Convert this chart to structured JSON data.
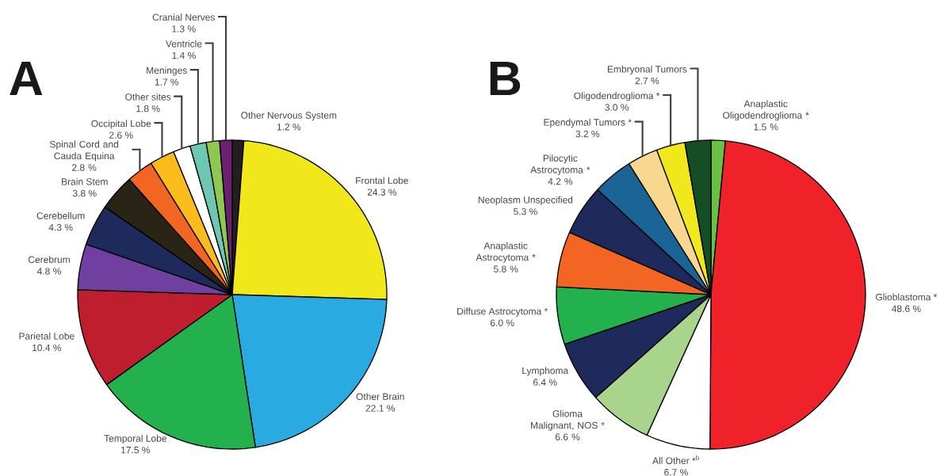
{
  "chart_data": [
    {
      "type": "pie",
      "title": "A",
      "categories": [
        "Other Nervous System",
        "Frontal Lobe",
        "Other Brain",
        "Temporal Lobe",
        "Parietal Lobe",
        "Cerebrum",
        "Cerebellum",
        "Brain Stem",
        "Spinal Cord and Cauda Equina",
        "Occipital Lobe",
        "Other sites",
        "Meninges",
        "Ventricle",
        "Cranial Nerves"
      ],
      "values": [
        1.2,
        24.3,
        22.1,
        17.5,
        10.4,
        4.8,
        4.3,
        3.8,
        2.8,
        2.6,
        1.8,
        1.7,
        1.4,
        1.3
      ],
      "value_labels": [
        "1.2 %",
        "24.3 %",
        "22.1 %",
        "17.5 %",
        "10.4 %",
        "4.8 %",
        "4.3 %",
        "3.8 %",
        "2.8 %",
        "2.6 %",
        "1.8 %",
        "1.7 %",
        "1.4 %",
        "1.3 %"
      ],
      "colors": [
        "#231f20",
        "#f0e81a",
        "#29abe2",
        "#22b14c",
        "#be1e2d",
        "#7040a0",
        "#1f2a5c",
        "#2a2416",
        "#f26522",
        "#fbbc1b",
        "#ffffff",
        "#6cc8b0",
        "#8dc850",
        "#6b2070"
      ]
    },
    {
      "type": "pie",
      "title": "B",
      "categories": [
        "Anaplastic Oligodendroglioma *",
        "Glioblastoma *",
        "All Other *$^{b}$",
        "Glioma Malignant, NOS *",
        "Lymphoma",
        "Diffuse Astrocytoma *",
        "Anaplastic Astrocytoma *",
        "Neoplasm Unspecified",
        "Pilocytic Astrocytoma *",
        "Ependymal Tumors *",
        "Oligodendroglioma *",
        "Embryonal Tumors"
      ],
      "values": [
        1.5,
        48.6,
        6.7,
        6.6,
        6.4,
        6.0,
        5.8,
        5.3,
        4.2,
        3.2,
        3.0,
        2.7
      ],
      "value_labels": [
        "1.5 %",
        "48.6 %",
        "6.7 %",
        "6.6 %",
        "6.4 %",
        "6.0 %",
        "5.8 %",
        "5.3 %",
        "4.2 %",
        "3.2 %",
        "3.0 %",
        "2.7 %"
      ],
      "colors": [
        "#6abf45",
        "#ee2228",
        "#ffffff",
        "#a8d48c",
        "#1f2a5c",
        "#22b14c",
        "#f26522",
        "#1f2a5c",
        "#1a6496",
        "#f8d890",
        "#f0e81a",
        "#154d25"
      ]
    }
  ]
}
